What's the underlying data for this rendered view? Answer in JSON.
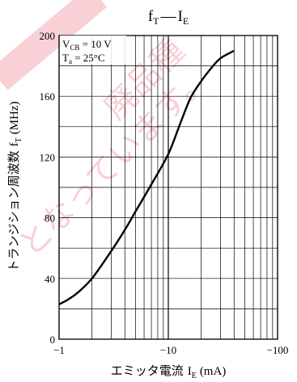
{
  "watermark": {
    "text_lines": [
      "廃品種",
      "となっています。"
    ],
    "color": "#e8304a"
  },
  "chart_data": {
    "type": "line",
    "title": "fT — IE",
    "title_parts": {
      "main_a": "f",
      "sub_a": "T",
      "dash": "—",
      "main_b": "I",
      "sub_b": "E"
    },
    "xlabel": {
      "prefix": "エミッタ電流",
      "symbol": "I",
      "subscript": "E",
      "unit": "(mA)"
    },
    "ylabel": {
      "prefix": "トランジション周波数",
      "symbol": "f",
      "subscript": "T",
      "unit": "(MHz)"
    },
    "x_scale": "log",
    "x_direction_note": "negative values, magnitude increases to the right",
    "xlim": [
      -1,
      -100
    ],
    "ylim": [
      0,
      200
    ],
    "x_ticks": [
      {
        "value": -1,
        "label": "−1"
      },
      {
        "value": -10,
        "label": "−10"
      },
      {
        "value": -100,
        "label": "−100"
      }
    ],
    "y_ticks": [
      {
        "value": 0,
        "label": "0"
      },
      {
        "value": 40,
        "label": "40"
      },
      {
        "value": 80,
        "label": "80"
      },
      {
        "value": 120,
        "label": "120"
      },
      {
        "value": 160,
        "label": "160"
      },
      {
        "value": 200,
        "label": "200"
      }
    ],
    "grid": true,
    "conditions": [
      {
        "main": "V",
        "sub": "CB",
        "rest": " = 10 V"
      },
      {
        "main": "T",
        "sub": "a",
        "rest": " = 25°C"
      }
    ],
    "series": [
      {
        "x": [
          -1,
          -1.2,
          -1.5,
          -2,
          -3,
          -4,
          -5,
          -7,
          -10,
          -13,
          -16,
          -20,
          -25,
          -30,
          -40
        ],
        "y": [
          23,
          26,
          31,
          40,
          58,
          72,
          84,
          102,
          122,
          143,
          159,
          170,
          179,
          185,
          190
        ]
      }
    ]
  }
}
